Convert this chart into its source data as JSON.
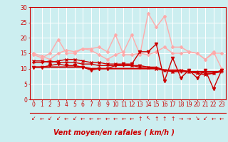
{
  "title": "",
  "xlabel": "Vent moyen/en rafales ( km/h )",
  "ylabel": "",
  "bg_color": "#cceef0",
  "grid_color": "#ffffff",
  "xmin": -0.5,
  "xmax": 23.5,
  "ymin": 0,
  "ymax": 30,
  "x": [
    0,
    1,
    2,
    3,
    4,
    5,
    6,
    7,
    8,
    9,
    10,
    11,
    12,
    13,
    14,
    15,
    16,
    17,
    18,
    19,
    20,
    21,
    22,
    23
  ],
  "series": [
    {
      "y": [
        10.5,
        10.5,
        10.5,
        10.5,
        10.5,
        10.5,
        10.5,
        10.0,
        10.0,
        10.0,
        10.0,
        10.0,
        10.0,
        10.0,
        10.0,
        10.0,
        9.5,
        9.5,
        9.5,
        9.0,
        9.0,
        9.0,
        9.0,
        9.0
      ],
      "color": "#cc0000",
      "lw": 1.5,
      "marker": "None",
      "zorder": 5
    },
    {
      "y": [
        12.0,
        12.0,
        12.5,
        12.0,
        12.0,
        12.0,
        11.5,
        11.5,
        11.0,
        11.0,
        11.0,
        11.0,
        11.0,
        10.5,
        10.5,
        10.5,
        9.5,
        9.0,
        9.0,
        9.0,
        9.0,
        8.5,
        8.5,
        9.0
      ],
      "color": "#cc0000",
      "lw": 1.0,
      "marker": "+",
      "ms": 3,
      "zorder": 4
    },
    {
      "y": [
        12.5,
        12.5,
        12.0,
        12.5,
        13.0,
        13.0,
        12.5,
        12.0,
        12.0,
        11.5,
        11.5,
        11.5,
        11.0,
        11.0,
        10.5,
        10.0,
        9.5,
        9.0,
        9.5,
        9.0,
        8.5,
        8.0,
        8.5,
        9.5
      ],
      "color": "#cc0000",
      "lw": 1.0,
      "marker": "x",
      "ms": 3,
      "zorder": 3
    },
    {
      "y": [
        10.5,
        10.5,
        11.0,
        11.5,
        11.0,
        11.0,
        10.5,
        9.5,
        10.0,
        10.0,
        11.0,
        11.5,
        11.5,
        15.5,
        15.5,
        18.0,
        6.0,
        13.5,
        7.0,
        9.5,
        7.0,
        9.5,
        3.5,
        9.5
      ],
      "color": "#cc0000",
      "lw": 1.0,
      "marker": "v",
      "ms": 3,
      "zorder": 6
    },
    {
      "y": [
        14.5,
        13.5,
        15.0,
        19.5,
        15.0,
        15.0,
        16.5,
        16.5,
        17.0,
        15.5,
        21.0,
        14.5,
        14.5,
        15.0,
        14.5,
        15.5,
        17.0,
        15.0,
        15.0,
        15.5,
        15.0,
        13.0,
        15.0,
        15.0
      ],
      "color": "#ffaaaa",
      "lw": 1.0,
      "marker": "D",
      "ms": 2,
      "zorder": 2
    },
    {
      "y": [
        15.0,
        14.0,
        13.0,
        15.0,
        16.0,
        15.5,
        16.5,
        16.0,
        14.5,
        13.0,
        14.5,
        15.5,
        21.0,
        14.5,
        28.0,
        23.5,
        27.0,
        17.0,
        17.0,
        15.5,
        15.0,
        13.0,
        15.5,
        10.0
      ],
      "color": "#ffaaaa",
      "lw": 1.0,
      "marker": "D",
      "ms": 2,
      "zorder": 2
    }
  ],
  "wind_arrows": [
    "↙",
    "←",
    "↙",
    "↙",
    "←",
    "↙",
    "←",
    "←",
    "←",
    "←",
    "←",
    "←",
    "←",
    "↑",
    "↖",
    "↑",
    "↑",
    "↑",
    "→",
    "→",
    "↘",
    "↙",
    "←",
    "←"
  ],
  "xlabel_color": "#cc0000",
  "xlabel_fontsize": 7,
  "tick_color": "#cc0000",
  "tick_fontsize": 5.5,
  "arrow_fontsize": 5.5
}
